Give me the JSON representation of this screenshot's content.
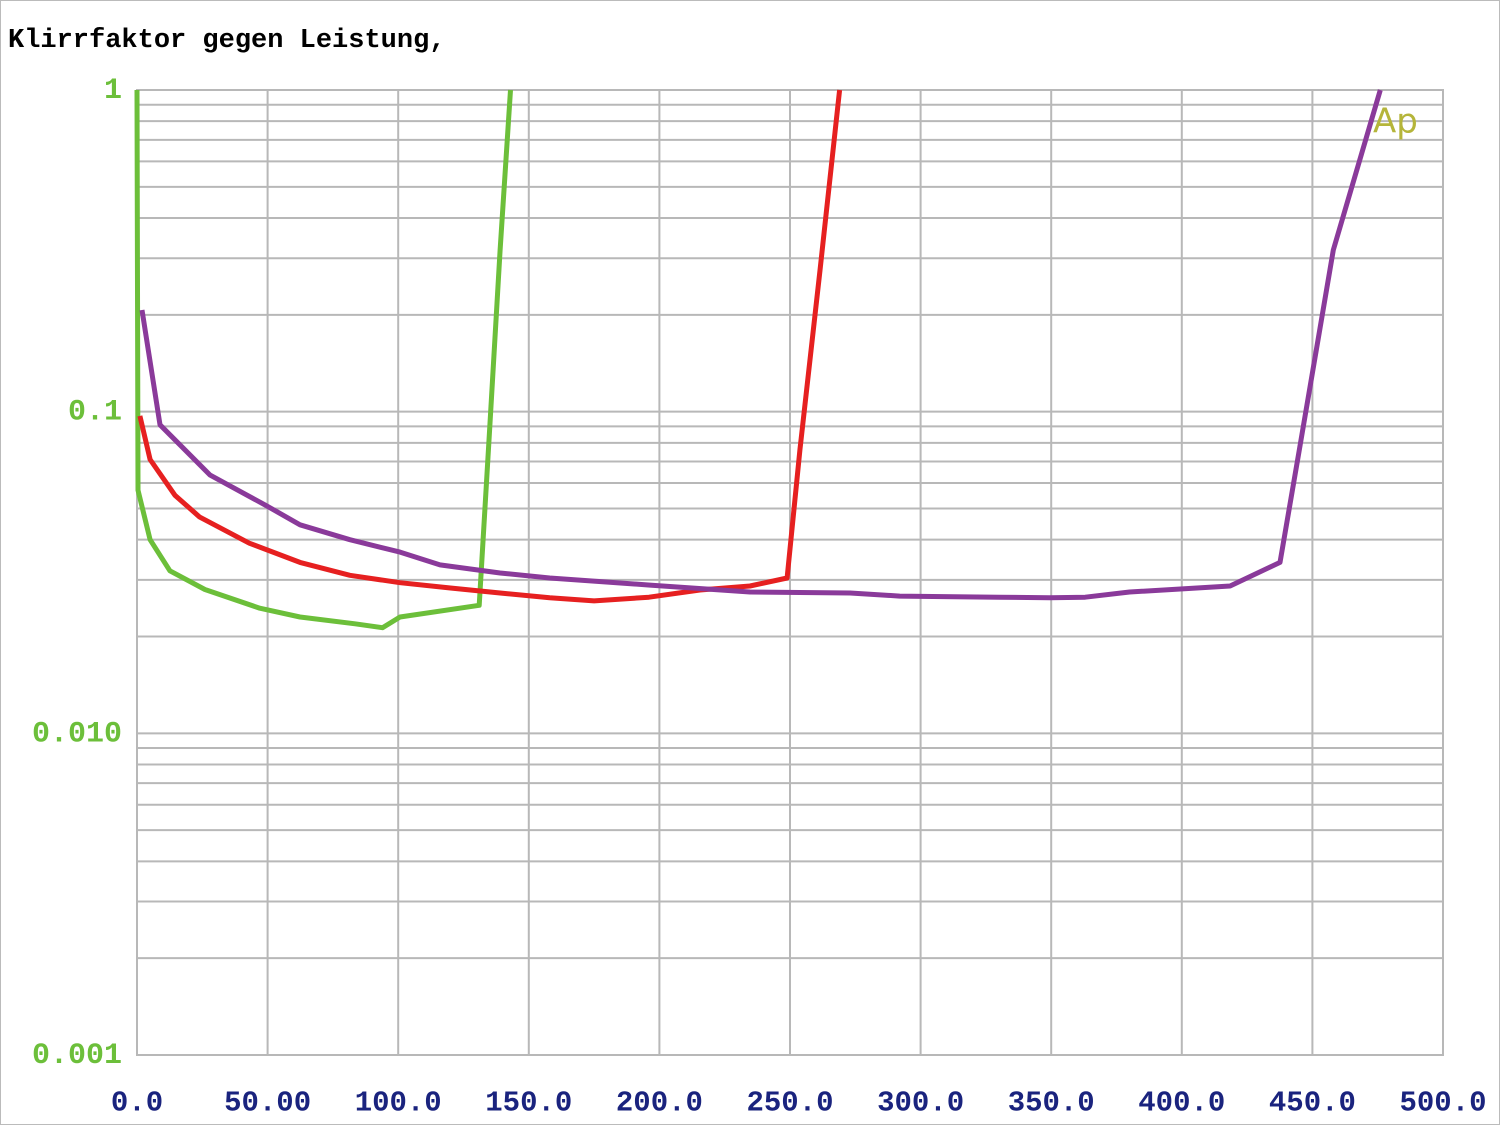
{
  "chart_data": {
    "type": "line",
    "title": "Klirrfaktor gegen Leistung,",
    "annotation": "Ap",
    "xlim": [
      0,
      500
    ],
    "xticks": [
      {
        "value": 0,
        "label": "0.0"
      },
      {
        "value": 50,
        "label": "50.00"
      },
      {
        "value": 100,
        "label": "100.0"
      },
      {
        "value": 150,
        "label": "150.0"
      },
      {
        "value": 200,
        "label": "200.0"
      },
      {
        "value": 250,
        "label": "250.0"
      },
      {
        "value": 300,
        "label": "300.0"
      },
      {
        "value": 350,
        "label": "350.0"
      },
      {
        "value": 400,
        "label": "400.0"
      },
      {
        "value": 450,
        "label": "450.0"
      },
      {
        "value": 500,
        "label": "500.0"
      }
    ],
    "ylim": [
      0.001,
      1
    ],
    "ylog": true,
    "yticks": [
      1,
      0.1,
      {
        "value": 0.01,
        "label": "0.010"
      },
      0.001
    ],
    "grid": true,
    "minor_grid": true,
    "series": [
      {
        "color": "#6cbf3a",
        "x": [
          0,
          0.4,
          5,
          12.6,
          26,
          47,
          62.4,
          83.5,
          94,
          100.7,
          131,
          135,
          139,
          143
        ],
        "values": [
          1,
          0.057,
          0.04,
          0.032,
          0.028,
          0.0245,
          0.023,
          0.0219,
          0.0213,
          0.023,
          0.025,
          0.0877,
          0.318,
          1
        ]
      },
      {
        "color": "#e62020",
        "x": [
          1.1,
          5,
          14.5,
          24,
          43,
          62.4,
          81.5,
          100.7,
          120,
          139,
          158,
          175,
          196,
          215.5,
          234.7,
          248.9,
          253.8,
          261.5,
          269
        ],
        "values": [
          0.097,
          0.071,
          0.055,
          0.047,
          0.039,
          0.034,
          0.031,
          0.0294,
          0.0283,
          0.0273,
          0.0264,
          0.0258,
          0.0265,
          0.0279,
          0.0287,
          0.0304,
          0.076,
          0.275,
          1
        ]
      },
      {
        "color": "#8a3a9a",
        "x": [
          1.9,
          8.8,
          28,
          49,
          62.4,
          81.5,
          100.7,
          116,
          139,
          158,
          196.4,
          234.7,
          273,
          292,
          330,
          349.5,
          363,
          380,
          418.5,
          437.6,
          445,
          458,
          476
        ],
        "values": [
          0.207,
          0.091,
          0.0635,
          0.0513,
          0.0445,
          0.04,
          0.0366,
          0.0334,
          0.0315,
          0.0304,
          0.0289,
          0.0275,
          0.0273,
          0.0267,
          0.0265,
          0.0264,
          0.0265,
          0.0275,
          0.0287,
          0.034,
          0.076,
          0.318,
          1
        ]
      }
    ]
  }
}
